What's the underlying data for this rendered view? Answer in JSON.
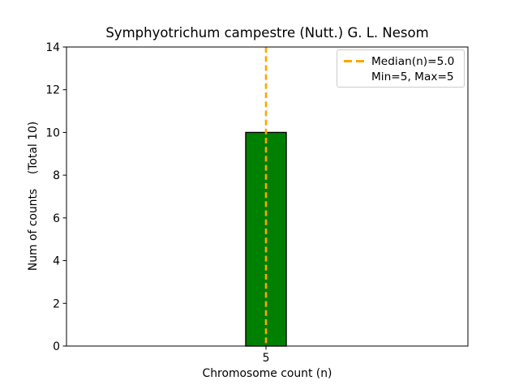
{
  "figure": {
    "background": "#ffffff"
  },
  "chart_data": {
    "type": "bar",
    "title": "Symphyotrichum campestre (Nutt.) G. L. Nesom",
    "xlabel": "Chromosome count (n)",
    "ylabel": "Num of counts    (Total 10)",
    "categories": [
      5
    ],
    "values": [
      10
    ],
    "bar_color": "#008000",
    "bar_edge_color": "#000000",
    "xticks": [
      5
    ],
    "yticks": [
      0,
      2,
      4,
      6,
      8,
      10,
      12,
      14
    ],
    "ylim": [
      0,
      14
    ],
    "grid": false,
    "median_line": {
      "value": 5.0,
      "color": "#FFA500",
      "style": "dashed"
    },
    "legend": {
      "position": "upper right",
      "entries": [
        {
          "label": "Median(n)=5.0",
          "marker": "dashed-line",
          "color": "#FFA500"
        },
        {
          "label": "Min=5, Max=5",
          "marker": "none"
        }
      ]
    }
  }
}
